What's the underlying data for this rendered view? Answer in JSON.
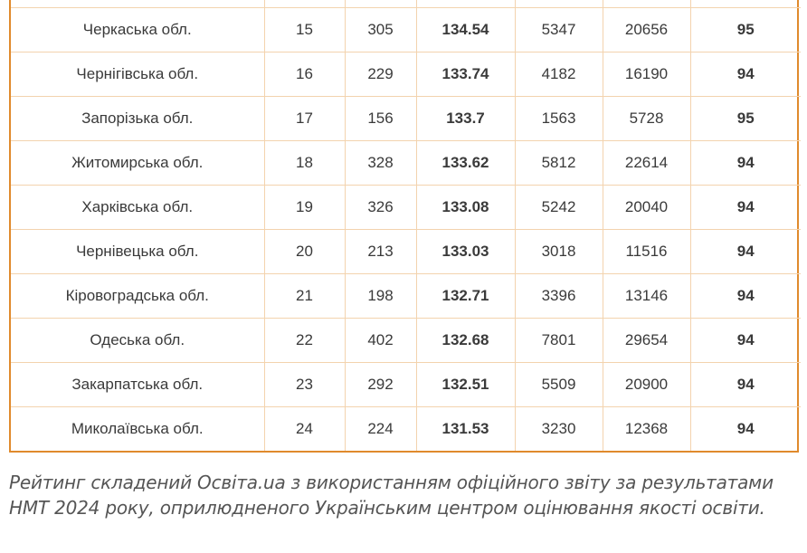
{
  "table": {
    "rows": [
      {
        "region": "",
        "rank": "",
        "schools": "",
        "score": "",
        "students": "",
        "tests": "",
        "pct": ""
      },
      {
        "region": "Черкаська обл.",
        "rank": "15",
        "schools": "305",
        "score": "134.54",
        "students": "5347",
        "tests": "20656",
        "pct": "95"
      },
      {
        "region": "Чернігівська обл.",
        "rank": "16",
        "schools": "229",
        "score": "133.74",
        "students": "4182",
        "tests": "16190",
        "pct": "94"
      },
      {
        "region": "Запорізька обл.",
        "rank": "17",
        "schools": "156",
        "score": "133.7",
        "students": "1563",
        "tests": "5728",
        "pct": "95"
      },
      {
        "region": "Житомирська обл.",
        "rank": "18",
        "schools": "328",
        "score": "133.62",
        "students": "5812",
        "tests": "22614",
        "pct": "94"
      },
      {
        "region": "Харківська обл.",
        "rank": "19",
        "schools": "326",
        "score": "133.08",
        "students": "5242",
        "tests": "20040",
        "pct": "94"
      },
      {
        "region": "Чернівецька обл.",
        "rank": "20",
        "schools": "213",
        "score": "133.03",
        "students": "3018",
        "tests": "11516",
        "pct": "94"
      },
      {
        "region": "Кіровоградська обл.",
        "rank": "21",
        "schools": "198",
        "score": "132.71",
        "students": "3396",
        "tests": "13146",
        "pct": "94"
      },
      {
        "region": "Одеська обл.",
        "rank": "22",
        "schools": "402",
        "score": "132.68",
        "students": "7801",
        "tests": "29654",
        "pct": "94"
      },
      {
        "region": "Закарпатська обл.",
        "rank": "23",
        "schools": "292",
        "score": "132.51",
        "students": "5509",
        "tests": "20900",
        "pct": "94"
      },
      {
        "region": "Миколаївська обл.",
        "rank": "24",
        "schools": "224",
        "score": "131.53",
        "students": "3230",
        "tests": "12368",
        "pct": "94"
      }
    ]
  },
  "caption": "Рейтинг складений Освіта.ua з використанням офіційного звіту за результатами НМТ 2024 року, оприлюдненого Українським центром оцінювання якості освіти.",
  "colors": {
    "border": "#e08a2c",
    "grid": "#f3d3ae",
    "text": "#3a3a3a",
    "caption": "#555555"
  }
}
